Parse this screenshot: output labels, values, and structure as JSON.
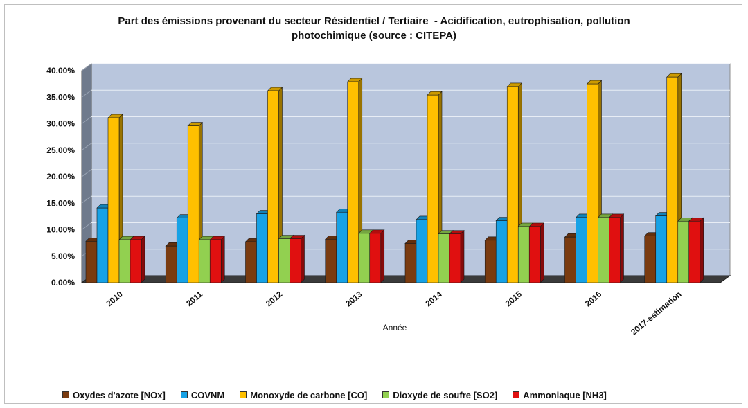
{
  "chart_data": {
    "type": "bar",
    "title_lines": [
      "Part des émissions provenant du secteur Résidentiel / Tertiaire  - Acidification, eutrophisation, pollution",
      "photochimique (source : CITEPA)"
    ],
    "xlabel": "Année",
    "ylabel": "",
    "categories": [
      "2010",
      "2011",
      "2012",
      "2013",
      "2014",
      "2015",
      "2016",
      "2017-estimation"
    ],
    "ylim": [
      0,
      40
    ],
    "yticks": [
      "0.00%",
      "5.00%",
      "10.00%",
      "15.00%",
      "20.00%",
      "25.00%",
      "30.00%",
      "35.00%",
      "40.00%"
    ],
    "grid": true,
    "legend_position": "bottom",
    "series": [
      {
        "name": "Oxydes d'azote [NOx]",
        "color": "#7a3b10",
        "values": [
          7.8,
          6.9,
          7.7,
          8.2,
          7.4,
          8.0,
          8.6,
          8.8
        ]
      },
      {
        "name": "COVNM",
        "color": "#17a2e6",
        "values": [
          14.1,
          12.2,
          13.0,
          13.3,
          11.9,
          11.7,
          12.3,
          12.6
        ]
      },
      {
        "name": "Monoxyde de carbone [CO]",
        "color": "#ffc000",
        "values": [
          31.1,
          29.6,
          36.2,
          37.9,
          35.4,
          37.0,
          37.5,
          38.8
        ]
      },
      {
        "name": "Dioxyde de soufre [SO2]",
        "color": "#92d050",
        "values": [
          8.1,
          8.1,
          8.3,
          9.3,
          9.2,
          10.6,
          12.3,
          11.6
        ]
      },
      {
        "name": "Ammoniaque [NH3]",
        "color": "#e01010",
        "values": [
          8.1,
          8.1,
          8.3,
          9.3,
          9.2,
          10.6,
          12.3,
          11.6
        ]
      }
    ]
  }
}
